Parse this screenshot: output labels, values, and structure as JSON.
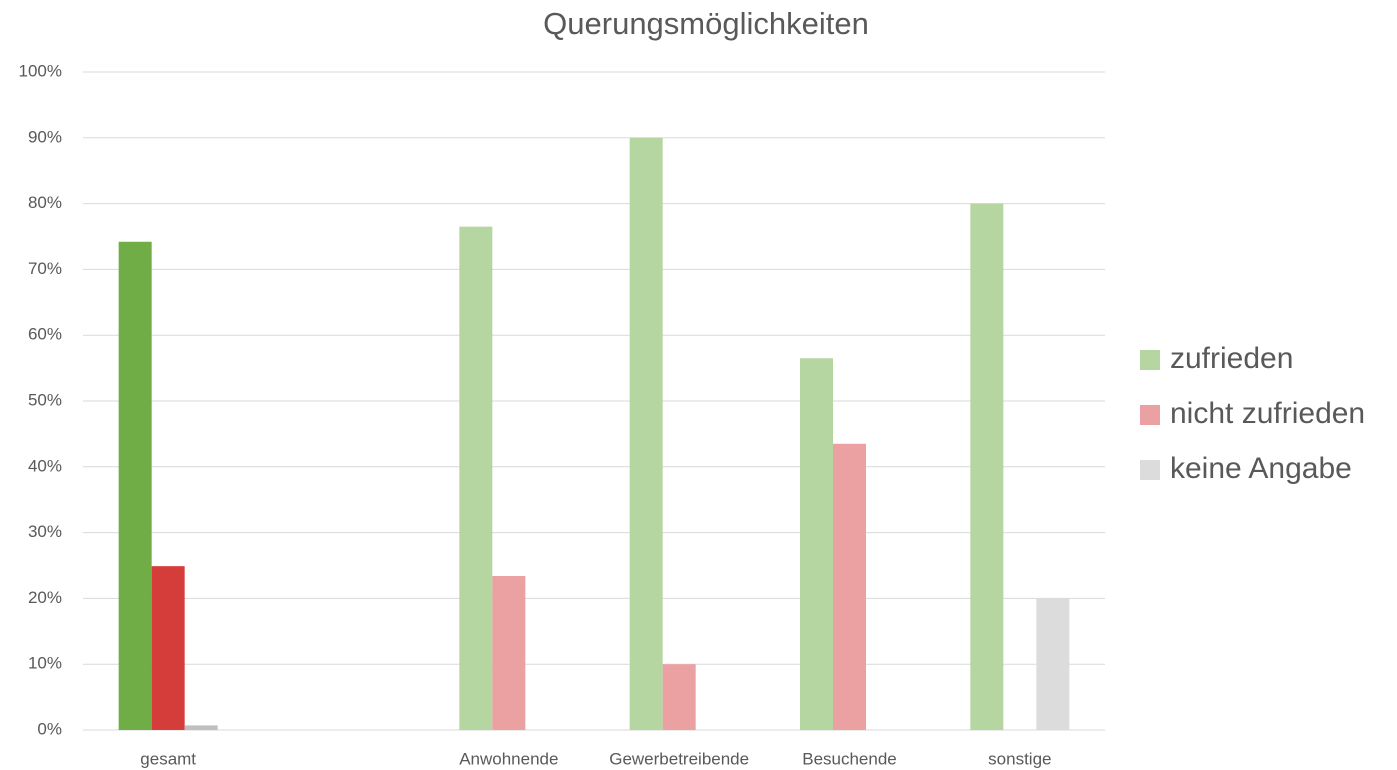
{
  "chart_data": {
    "type": "bar",
    "title": "Querungsmöglichkeiten",
    "categories": [
      "gesamt",
      null,
      "Anwohnende",
      "Gewerbetreibende",
      "Besuchende",
      "sonstige"
    ],
    "series": [
      {
        "name": "zufrieden",
        "color": "#b5d6a0",
        "point_colors": [
          "#70ad47",
          null,
          "#b5d6a0",
          "#b5d6a0",
          "#b5d6a0",
          "#b5d6a0"
        ],
        "values": [
          74.2,
          null,
          76.5,
          90,
          56.5,
          80
        ]
      },
      {
        "name": "nicht zufrieden",
        "color": "#eba1a1",
        "point_colors": [
          "#d43d3a",
          null,
          "#eba1a1",
          "#eba1a1",
          "#eba1a1",
          "#eba1a1"
        ],
        "values": [
          24.9,
          null,
          23.4,
          10,
          43.5,
          0
        ]
      },
      {
        "name": "keine Angabe",
        "color": "#dcdcdc",
        "point_colors": [
          "#bfbfbf",
          null,
          "#dcdcdc",
          "#dcdcdc",
          "#dcdcdc",
          "#dcdcdc"
        ],
        "values": [
          0.7,
          null,
          0,
          0,
          0,
          20
        ]
      }
    ],
    "ylim": [
      0,
      100
    ],
    "yticks": [
      {
        "value": 0,
        "label": "0%"
      },
      {
        "value": 10,
        "label": "10%"
      },
      {
        "value": 20,
        "label": "20%"
      },
      {
        "value": 30,
        "label": "30%"
      },
      {
        "value": 40,
        "label": "40%"
      },
      {
        "value": 50,
        "label": "50%"
      },
      {
        "value": 60,
        "label": "60%"
      },
      {
        "value": 70,
        "label": "70%"
      },
      {
        "value": 80,
        "label": "80%"
      },
      {
        "value": 90,
        "label": "90%"
      },
      {
        "value": 100,
        "label": "100%"
      }
    ],
    "grid": true,
    "legend": "right"
  }
}
